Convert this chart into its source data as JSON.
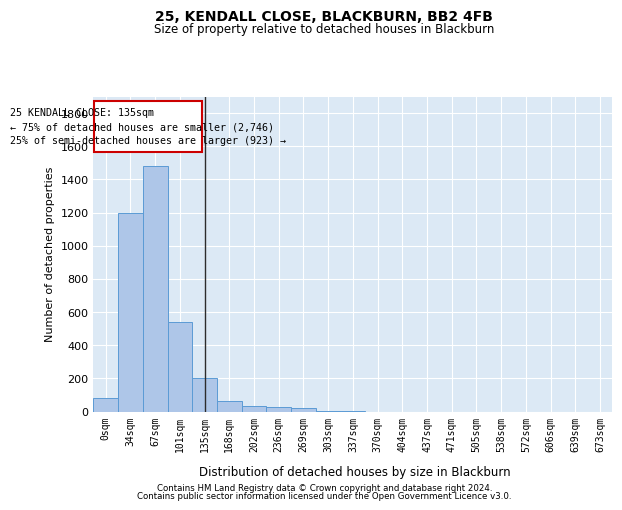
{
  "title": "25, KENDALL CLOSE, BLACKBURN, BB2 4FB",
  "subtitle": "Size of property relative to detached houses in Blackburn",
  "xlabel": "Distribution of detached houses by size in Blackburn",
  "ylabel": "Number of detached properties",
  "footer_line1": "Contains HM Land Registry data © Crown copyright and database right 2024.",
  "footer_line2": "Contains public sector information licensed under the Open Government Licence v3.0.",
  "bar_color": "#aec6e8",
  "bar_edge_color": "#5b9bd5",
  "plot_bg_color": "#dce9f5",
  "grid_color": "#ffffff",
  "annotation_box_edge_color": "#cc0000",
  "annotation_line1": "25 KENDALL CLOSE: 135sqm",
  "annotation_line2": "← 75% of detached houses are smaller (2,746)",
  "annotation_line3": "25% of semi-detached houses are larger (923) →",
  "property_line_index": 4,
  "categories": [
    "0sqm",
    "34sqm",
    "67sqm",
    "101sqm",
    "135sqm",
    "168sqm",
    "202sqm",
    "236sqm",
    "269sqm",
    "303sqm",
    "337sqm",
    "370sqm",
    "404sqm",
    "437sqm",
    "471sqm",
    "505sqm",
    "538sqm",
    "572sqm",
    "606sqm",
    "639sqm",
    "673sqm"
  ],
  "values": [
    80,
    1200,
    1480,
    540,
    205,
    65,
    35,
    25,
    20,
    5,
    5,
    0,
    0,
    0,
    0,
    0,
    0,
    0,
    0,
    0,
    0
  ],
  "ylim": [
    0,
    1900
  ],
  "yticks": [
    0,
    200,
    400,
    600,
    800,
    1000,
    1200,
    1400,
    1600,
    1800
  ]
}
